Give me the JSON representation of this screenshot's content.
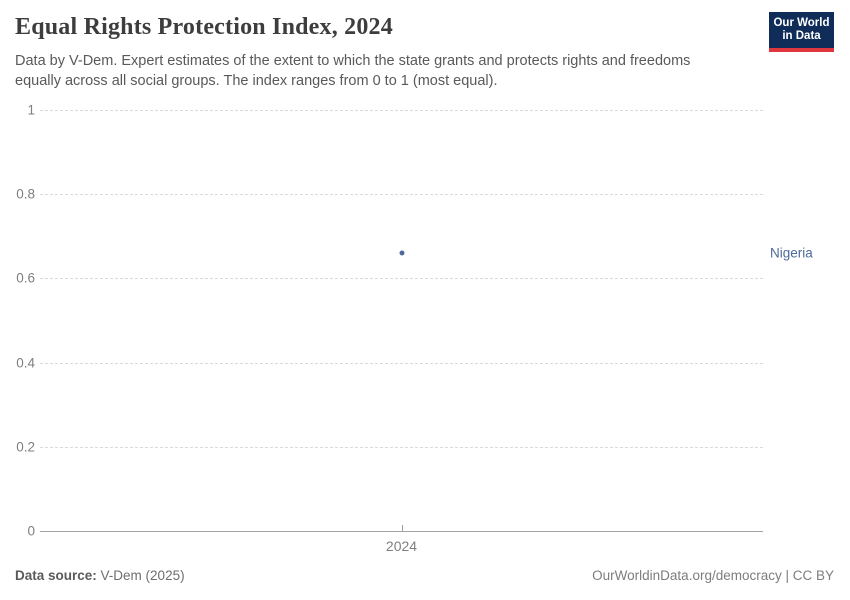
{
  "header": {
    "title": "Equal Rights Protection Index, 2024",
    "subtitle": "Data by V-Dem. Expert estimates of the extent to which the state grants and protects rights and freedoms equally across all social groups. The index ranges from 0 to 1 (most equal).",
    "logo": {
      "line1": "Our World",
      "line2": "in Data",
      "bg_color": "#102d59",
      "accent_color": "#e0373f"
    }
  },
  "chart_data": {
    "type": "scatter",
    "title": "Equal Rights Protection Index, 2024",
    "x": [
      2024
    ],
    "xticks": [
      "2024"
    ],
    "xtick_fracs": [
      0.5
    ],
    "series": [
      {
        "name": "Nigeria",
        "x": 2024,
        "value": 0.66,
        "color": "#4c6a9c"
      }
    ],
    "xlabel": "",
    "ylabel": "",
    "ylim": [
      0,
      1
    ],
    "yticks": [
      0,
      0.2,
      0.4,
      0.6,
      0.8,
      1
    ],
    "grid": true,
    "legend_position": "right-of-point"
  },
  "footer": {
    "source_label": "Data source:",
    "source_value": "V-Dem (2025)",
    "credit": "OurWorldinData.org/democracy | CC BY"
  }
}
